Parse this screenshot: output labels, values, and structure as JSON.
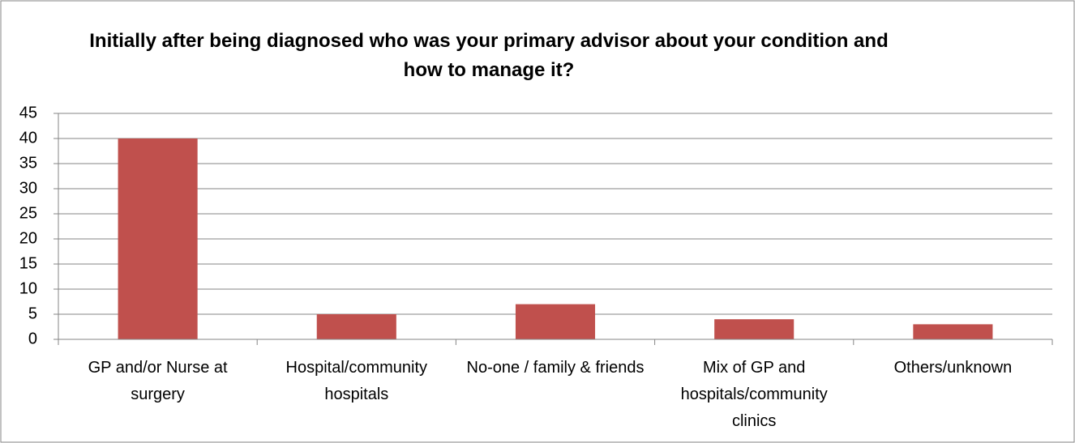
{
  "chart_data": {
    "type": "bar",
    "title": "Initially after being diagnosed who was your primary advisor about your condition and how to manage it?",
    "categories": [
      "GP and/or Nurse at surgery",
      "Hospital/community hospitals",
      "No-one / family & friends",
      "Mix of GP and hospitals/community clinics",
      "Others/unknown"
    ],
    "values": [
      40,
      5,
      7,
      4,
      3
    ],
    "color": "#c0504d",
    "ylim": [
      0,
      45
    ],
    "yticks": [
      0,
      5,
      10,
      15,
      20,
      25,
      30,
      35,
      40,
      45
    ],
    "grid": true
  }
}
